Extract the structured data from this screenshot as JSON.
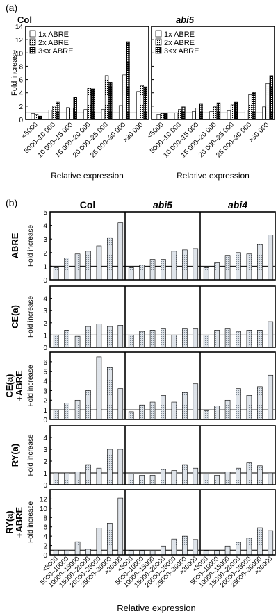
{
  "figure": {
    "panel_a_label": "(a)",
    "panel_b_label": "(b)"
  },
  "colors": {
    "axis": "#000000",
    "bar_outline": "#000000",
    "bar_fill_b": "#cfd6de",
    "bar_fill_1x": "#ffffff",
    "bar_fill_2x": "#ffffff",
    "bar_fill_3x": "#000000"
  },
  "chart_data": [
    {
      "panel": "(a)",
      "type": "bar",
      "ylabel": "Fold increase",
      "xlabel": "Relative expression",
      "ylim": [
        0,
        14
      ],
      "yticks": [
        0,
        2,
        4,
        6,
        8,
        10,
        12,
        14
      ],
      "categories": [
        "<5000",
        "5000–10 000",
        "10 000–15 000",
        "15 000–20 000",
        "20 000–25 000",
        "25 000–30 000",
        ">30 000"
      ],
      "reference_line": 1,
      "legend": {
        "position": "top-left",
        "entries": [
          "1x   ABRE",
          "2x   ABRE",
          "3<x ABRE"
        ]
      },
      "charts": [
        {
          "title": "Col",
          "series": [
            {
              "name": "1x   ABRE",
              "values": [
                0.9,
                1.4,
                1.8,
                1.5,
                1.5,
                2.1,
                4.2
              ]
            },
            {
              "name": "2x   ABRE",
              "values": [
                0.8,
                2.0,
                1.7,
                4.7,
                6.6,
                6.7,
                5.1
              ]
            },
            {
              "name": "3<x ABRE",
              "values": [
                0.5,
                2.6,
                3.4,
                4.6,
                5.6,
                11.7,
                4.9
              ]
            }
          ]
        },
        {
          "title": "abi5",
          "series": [
            {
              "name": "1x   ABRE",
              "values": [
                0.8,
                1.0,
                1.2,
                1.2,
                1.3,
                1.4,
                1.9
              ]
            },
            {
              "name": "2x   ABRE",
              "values": [
                0.9,
                1.5,
                1.7,
                1.9,
                2.2,
                3.7,
                5.4
              ]
            },
            {
              "name": "3<x ABRE",
              "values": [
                0.9,
                1.9,
                2.3,
                2.5,
                2.6,
                4.1,
                6.6
              ]
            }
          ]
        }
      ]
    },
    {
      "panel": "(b)",
      "type": "bar",
      "xlabel": "Relative expression",
      "categories": [
        "<5000",
        "5000–10000",
        "10000–15000",
        "15000–20000",
        "20000–25000",
        "25000–30000",
        ">30000"
      ],
      "reference_line": 1,
      "columns": [
        "Col",
        "abi5",
        "abi4"
      ],
      "rows": [
        {
          "label": "ABRE",
          "ylabel": "Fold increase",
          "ylim": [
            0,
            5
          ],
          "yticks": [
            0,
            1,
            2,
            3,
            4,
            5
          ],
          "values": [
            [
              0.9,
              1.6,
              1.9,
              2.1,
              2.5,
              3.1,
              4.2
            ],
            [
              0.9,
              1.1,
              1.5,
              1.5,
              2.1,
              2.2,
              2.3
            ],
            [
              0.9,
              1.3,
              1.8,
              2.0,
              1.9,
              2.6,
              3.3
            ]
          ]
        },
        {
          "label": "CE(a)",
          "ylabel": "Fold increase",
          "ylim": [
            0,
            5
          ],
          "yticks": [
            0,
            1,
            2,
            3,
            4
          ],
          "values": [
            [
              1.0,
              1.4,
              0.9,
              1.7,
              1.9,
              1.7,
              1.8
            ],
            [
              1.0,
              1.3,
              1.4,
              1.5,
              1.0,
              1.5,
              1.5
            ],
            [
              1.0,
              1.4,
              1.5,
              1.3,
              1.4,
              1.4,
              2.1
            ]
          ]
        },
        {
          "label": "CE(a)\n+ABRE",
          "ylabel": "Fold increase",
          "ylim": [
            0,
            7
          ],
          "yticks": [
            0,
            1,
            2,
            3,
            4,
            5,
            6
          ],
          "values": [
            [
              1.0,
              1.7,
              2.0,
              3.0,
              6.5,
              5.4,
              3.2
            ],
            [
              0.8,
              1.5,
              1.8,
              2.5,
              1.8,
              2.8,
              3.7
            ],
            [
              0.9,
              1.4,
              2.0,
              3.2,
              2.5,
              3.4,
              4.6
            ]
          ]
        },
        {
          "label": "RY(a)",
          "ylabel": "Fold increase",
          "ylim": [
            0,
            5
          ],
          "yticks": [
            0,
            1,
            2,
            3,
            4
          ],
          "values": [
            [
              1.0,
              1.0,
              1.1,
              1.7,
              1.4,
              3.0,
              3.0
            ],
            [
              0.9,
              0.8,
              0.8,
              1.3,
              1.2,
              1.7,
              1.4
            ],
            [
              0.9,
              0.8,
              1.1,
              1.4,
              1.9,
              1.6,
              1.0
            ]
          ]
        },
        {
          "label": "RY(a)\n+ABRE",
          "ylabel": "Fold increase",
          "ylim": [
            0,
            14
          ],
          "yticks": [
            0,
            2,
            4,
            6,
            8,
            10,
            12
          ],
          "values": [
            [
              1.0,
              1.0,
              2.8,
              1.2,
              5.7,
              6.8,
              12.2
            ],
            [
              0.9,
              0.9,
              0.8,
              1.9,
              3.4,
              4.0,
              3.3
            ],
            [
              0.9,
              0.9,
              1.9,
              2.7,
              3.6,
              5.8,
              5.2
            ]
          ]
        }
      ]
    }
  ]
}
